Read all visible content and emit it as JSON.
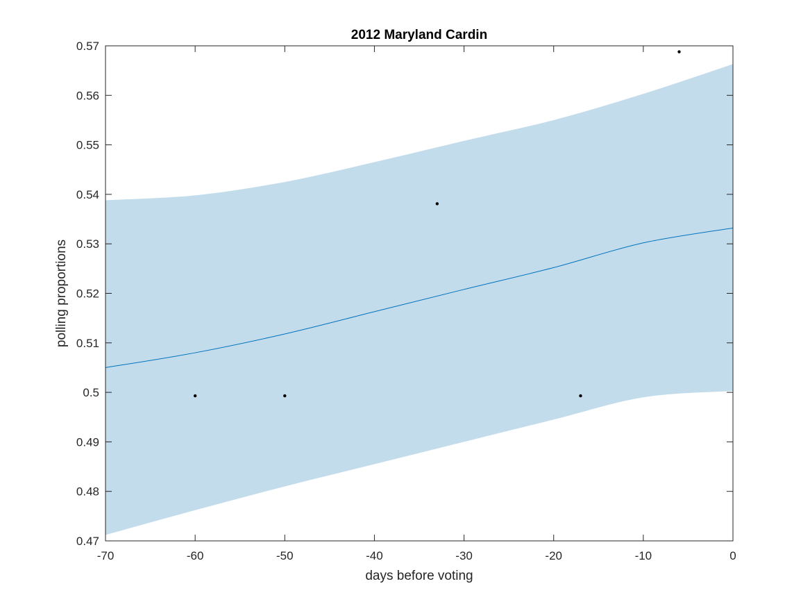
{
  "chart_data": {
    "type": "line",
    "title": "2012 Maryland Cardin",
    "xlabel": "days before voting",
    "ylabel": "polling proportions",
    "xlim": [
      -70,
      0
    ],
    "ylim": [
      0.47,
      0.57
    ],
    "x_ticks": [
      -70,
      -60,
      -50,
      -40,
      -30,
      -20,
      -10,
      0
    ],
    "x_tick_labels": [
      "-70",
      "-60",
      "-50",
      "-40",
      "-30",
      "-20",
      "-10",
      "0"
    ],
    "y_ticks": [
      0.47,
      0.48,
      0.49,
      0.5,
      0.51,
      0.52,
      0.53,
      0.54,
      0.55,
      0.56,
      0.57
    ],
    "y_tick_labels": [
      "0.47",
      "0.48",
      "0.49",
      "0.5",
      "0.51",
      "0.52",
      "0.53",
      "0.54",
      "0.55",
      "0.56",
      "0.57"
    ],
    "grid": false,
    "colors": {
      "band": "#c2dcec",
      "line": "#0072bd",
      "points": "#000000",
      "axes": "#262626"
    },
    "fit_line": {
      "x": [
        -70,
        -60,
        -50,
        -40,
        -30,
        -20,
        -10,
        0
      ],
      "y": [
        0.505,
        0.508,
        0.5118,
        0.5163,
        0.5208,
        0.5252,
        0.5302,
        0.5332
      ]
    },
    "confidence_band": {
      "x": [
        -70,
        -60,
        -50,
        -40,
        -30,
        -20,
        -10,
        0
      ],
      "upper": [
        0.5388,
        0.5398,
        0.5425,
        0.5465,
        0.5508,
        0.555,
        0.5603,
        0.5663
      ],
      "lower": [
        0.4712,
        0.4762,
        0.481,
        0.4855,
        0.49,
        0.4945,
        0.499,
        0.5003
      ]
    },
    "points": {
      "x": [
        -60,
        -50,
        -33,
        -17,
        -6
      ],
      "y": [
        0.4993,
        0.4993,
        0.5381,
        0.4993,
        0.5688
      ]
    }
  }
}
